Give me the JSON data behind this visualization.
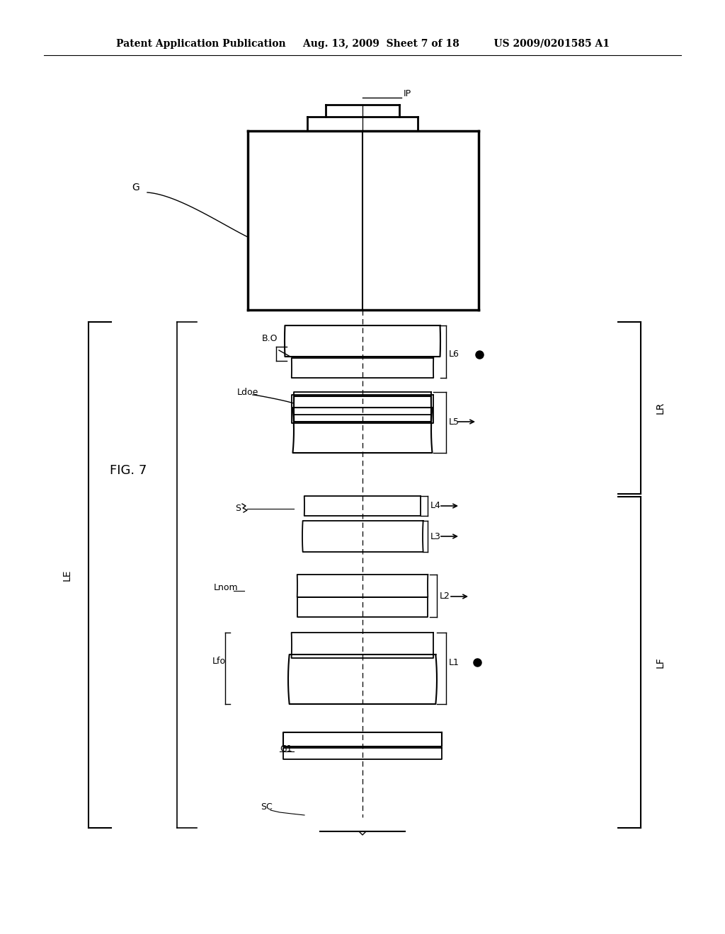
{
  "bg_color": "#ffffff",
  "header_line1": "Patent Application Publication",
  "header_line2": "Aug. 13, 2009  Sheet 7 of 18",
  "header_line3": "US 2009/0201585 A1",
  "fig_label": "FIG. 7",
  "page_width": 10.24,
  "page_height": 13.2
}
